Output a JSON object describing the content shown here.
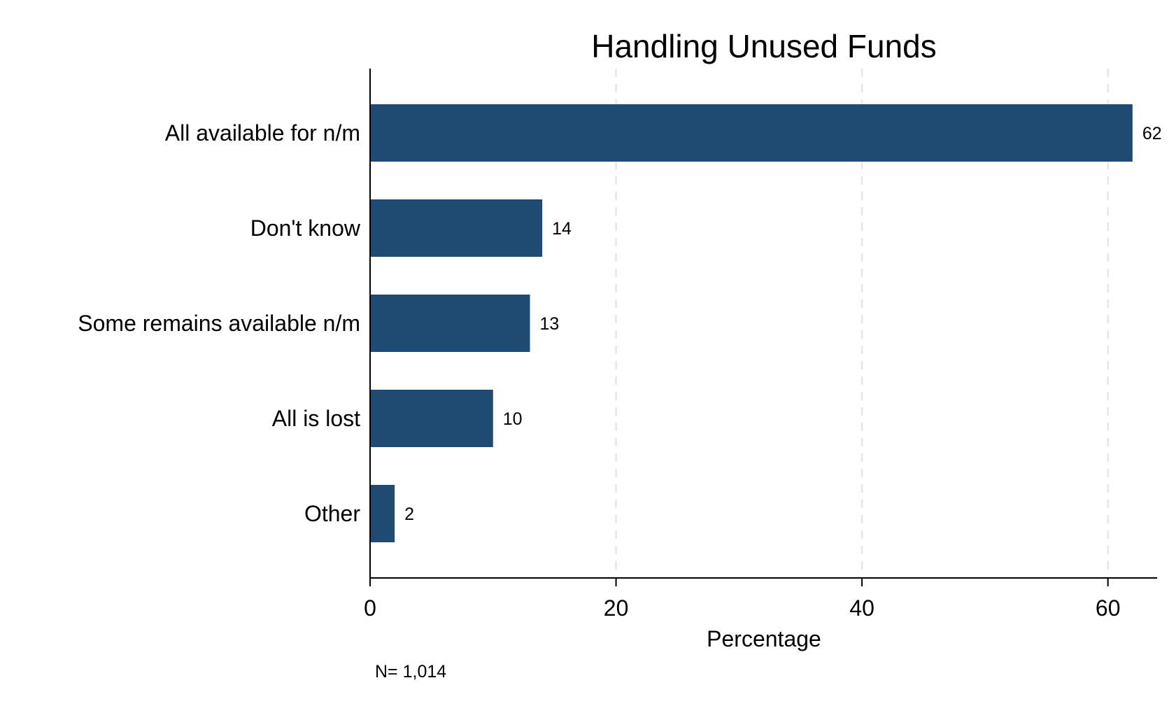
{
  "chart_data": {
    "type": "bar",
    "orientation": "horizontal",
    "title": "Handling Unused Funds",
    "xlabel": "Percentage",
    "ylabel": "",
    "categories": [
      "All available for n/m",
      "Don't know",
      "Some remains available n/m",
      "All is lost",
      "Other"
    ],
    "values": [
      62,
      14,
      13,
      10,
      2
    ],
    "value_labels": [
      "62",
      "14",
      "13",
      "10",
      "2"
    ],
    "xlim": [
      0,
      64
    ],
    "xticks": [
      0,
      20,
      40,
      60
    ],
    "xtick_labels": [
      "0",
      "20",
      "40",
      "60"
    ],
    "grid": true,
    "bar_color": "#1f4a72",
    "note": "N= 1,014"
  }
}
